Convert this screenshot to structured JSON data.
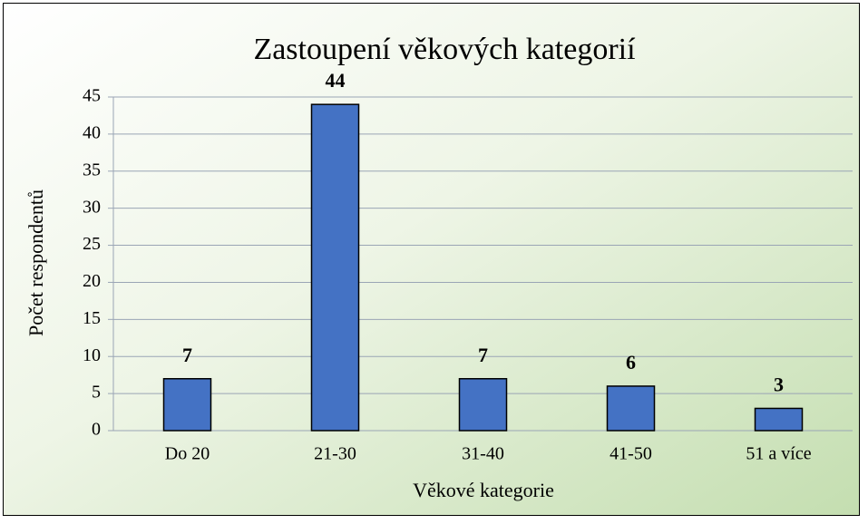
{
  "chart_data": {
    "type": "bar",
    "title": "Zastoupení věkových kategorií",
    "x_label": "Věkové kategorie",
    "y_label": "Počet respondentů",
    "categories": [
      "Do 20",
      "21-30",
      "31-40",
      "41-50",
      "51 a více"
    ],
    "values": [
      7,
      44,
      7,
      6,
      3
    ],
    "color": "#4472c4",
    "ylim": [
      0,
      45
    ],
    "yticks": [
      0,
      5,
      10,
      15,
      20,
      25,
      30,
      35,
      40,
      45
    ],
    "grid": true
  }
}
